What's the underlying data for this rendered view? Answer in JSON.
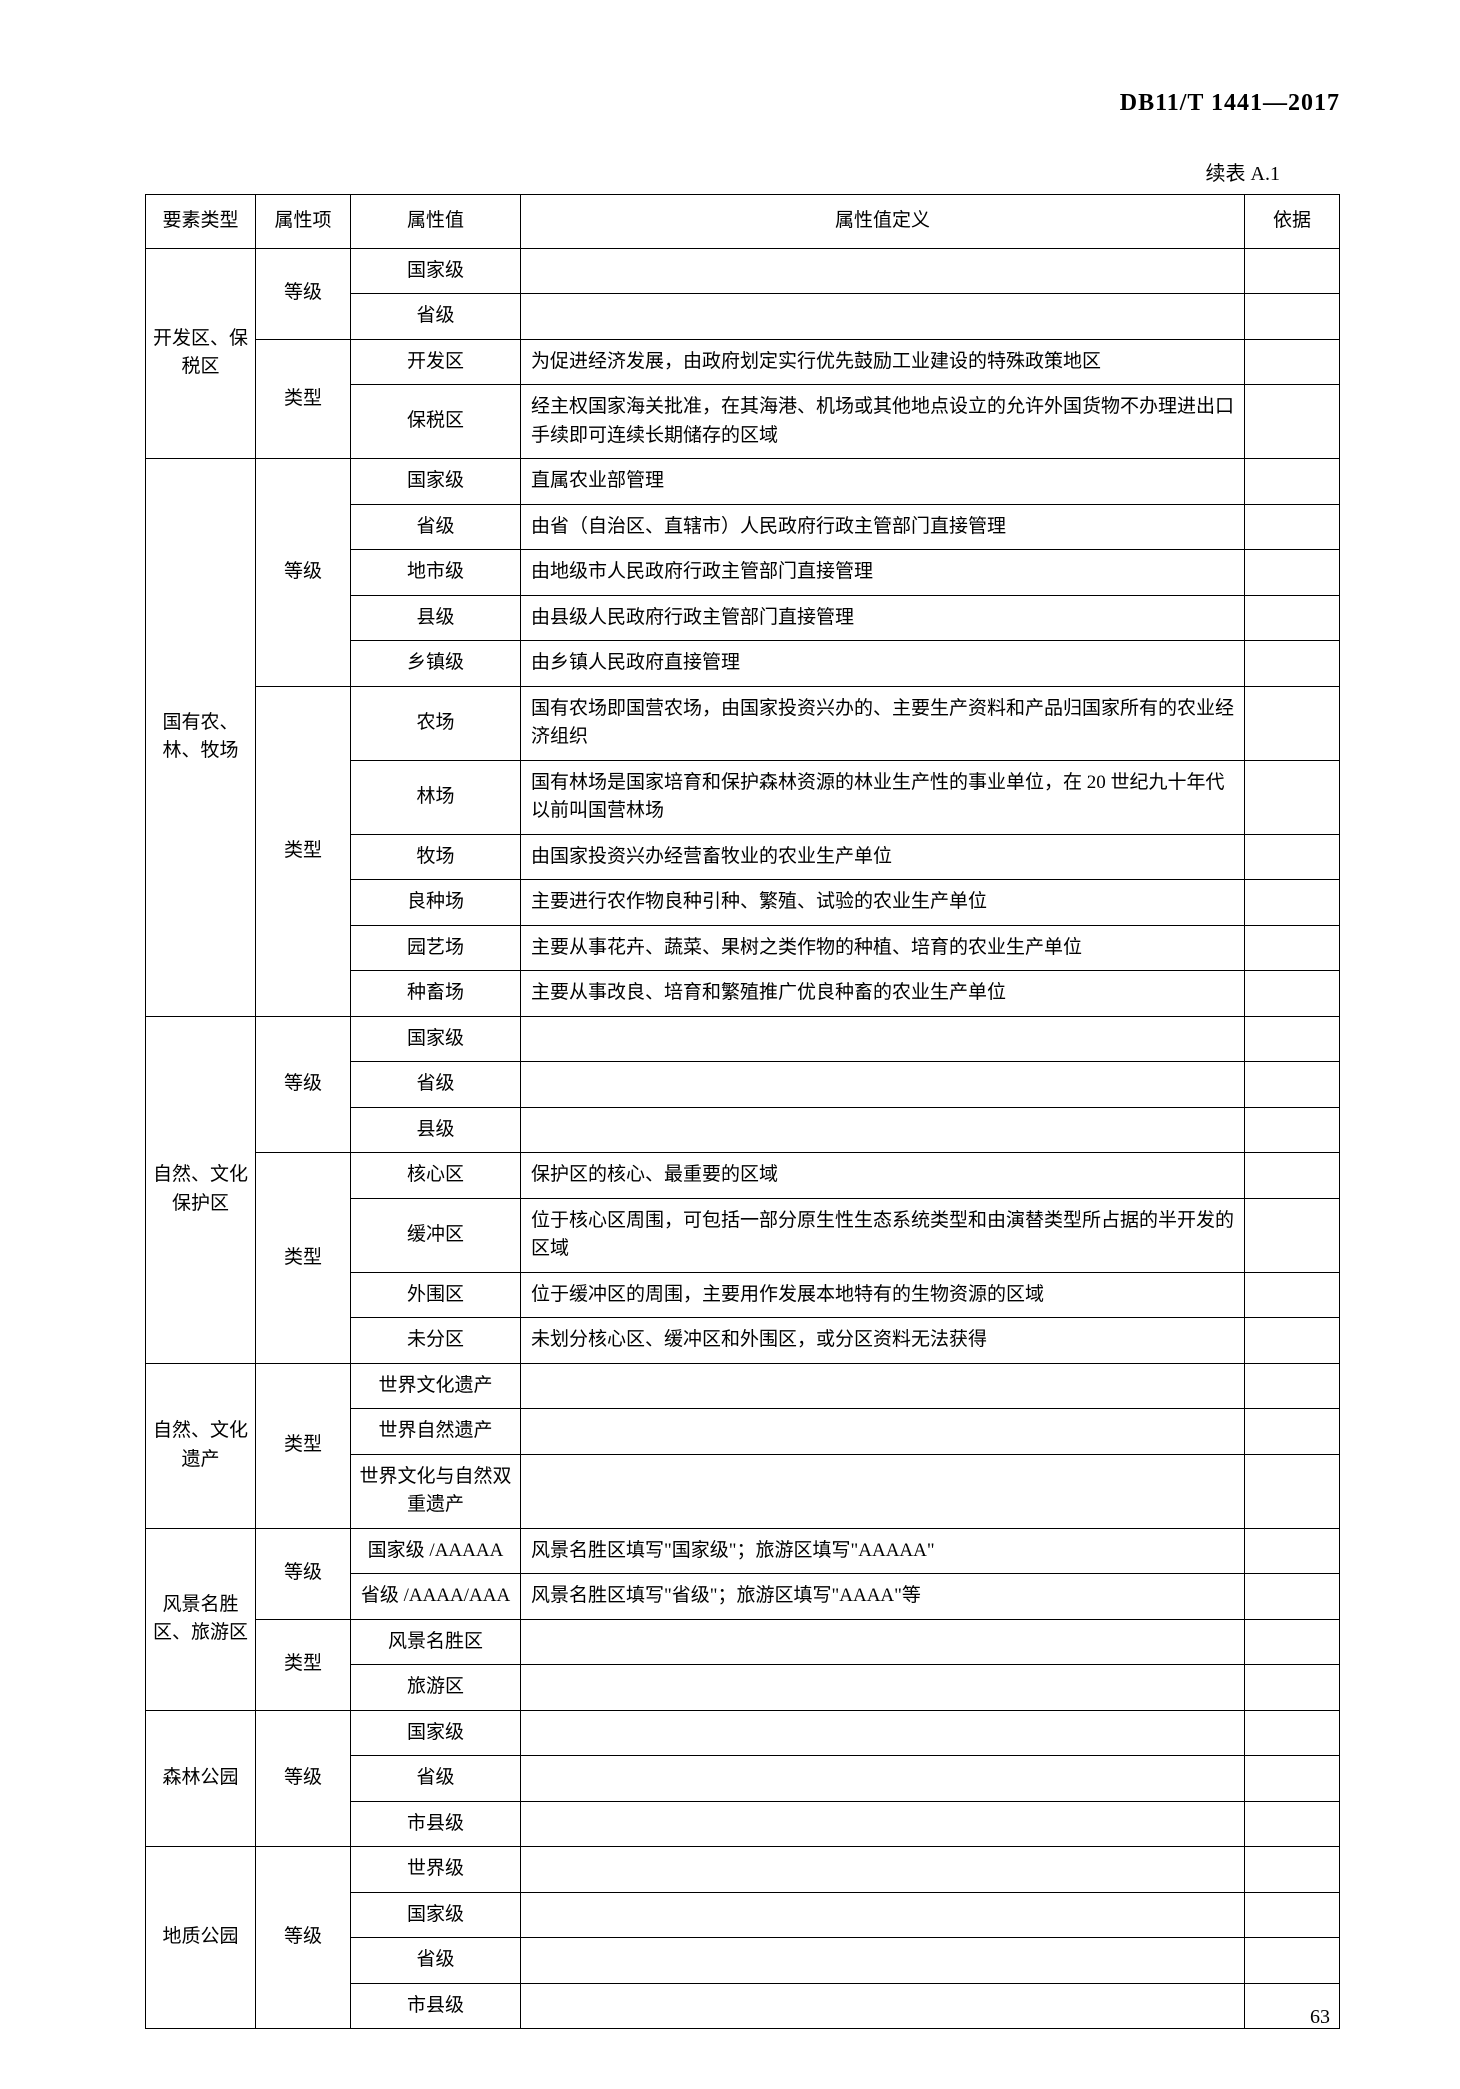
{
  "doc_id": "DB11/T 1441—2017",
  "table_caption": "续表 A.1",
  "page_number": "63",
  "headers": {
    "c1": "要素类型",
    "c2": "属性项",
    "c3": "属性值",
    "c4": "属性值定义",
    "c5": "依据"
  },
  "groups": [
    {
      "element_type": "开发区、保税区",
      "attrs": [
        {
          "attr": "等级",
          "values": [
            {
              "val": "国家级",
              "def": ""
            },
            {
              "val": "省级",
              "def": ""
            }
          ]
        },
        {
          "attr": "类型",
          "values": [
            {
              "val": "开发区",
              "def": "为促进经济发展，由政府划定实行优先鼓励工业建设的特殊政策地区"
            },
            {
              "val": "保税区",
              "def": "经主权国家海关批准，在其海港、机场或其他地点设立的允许外国货物不办理进出口手续即可连续长期储存的区域"
            }
          ]
        }
      ]
    },
    {
      "element_type": "国有农、林、牧场",
      "attrs": [
        {
          "attr": "等级",
          "values": [
            {
              "val": "国家级",
              "def": "直属农业部管理"
            },
            {
              "val": "省级",
              "def": "由省（自治区、直辖市）人民政府行政主管部门直接管理"
            },
            {
              "val": "地市级",
              "def": "由地级市人民政府行政主管部门直接管理"
            },
            {
              "val": "县级",
              "def": "由县级人民政府行政主管部门直接管理"
            },
            {
              "val": "乡镇级",
              "def": "由乡镇人民政府直接管理"
            }
          ]
        },
        {
          "attr": "类型",
          "values": [
            {
              "val": "农场",
              "def": "国有农场即国营农场，由国家投资兴办的、主要生产资料和产品归国家所有的农业经济组织"
            },
            {
              "val": "林场",
              "def": "国有林场是国家培育和保护森林资源的林业生产性的事业单位，在 20 世纪九十年代以前叫国营林场"
            },
            {
              "val": "牧场",
              "def": "由国家投资兴办经营畜牧业的农业生产单位"
            },
            {
              "val": "良种场",
              "def": "主要进行农作物良种引种、繁殖、试验的农业生产单位"
            },
            {
              "val": "园艺场",
              "def": "主要从事花卉、蔬菜、果树之类作物的种植、培育的农业生产单位"
            },
            {
              "val": "种畜场",
              "def": "主要从事改良、培育和繁殖推广优良种畜的农业生产单位"
            }
          ]
        }
      ]
    },
    {
      "element_type": "自然、文化保护区",
      "attrs": [
        {
          "attr": "等级",
          "values": [
            {
              "val": "国家级",
              "def": ""
            },
            {
              "val": "省级",
              "def": ""
            },
            {
              "val": "县级",
              "def": ""
            }
          ]
        },
        {
          "attr": "类型",
          "values": [
            {
              "val": "核心区",
              "def": "保护区的核心、最重要的区域"
            },
            {
              "val": "缓冲区",
              "def": "位于核心区周围，可包括一部分原生性生态系统类型和由演替类型所占据的半开发的区域"
            },
            {
              "val": "外围区",
              "def": "位于缓冲区的周围，主要用作发展本地特有的生物资源的区域"
            },
            {
              "val": "未分区",
              "def": "未划分核心区、缓冲区和外围区，或分区资料无法获得"
            }
          ]
        }
      ]
    },
    {
      "element_type": "自然、文化遗产",
      "attrs": [
        {
          "attr": "类型",
          "values": [
            {
              "val": "世界文化遗产",
              "def": ""
            },
            {
              "val": "世界自然遗产",
              "def": ""
            },
            {
              "val": "世界文化与自然双重遗产",
              "def": ""
            }
          ]
        }
      ]
    },
    {
      "element_type": "风景名胜区、旅游区",
      "attrs": [
        {
          "attr": "等级",
          "values": [
            {
              "val": "国家级 /AAAAA",
              "def": "风景名胜区填写\"国家级\"；旅游区填写\"AAAAA\""
            },
            {
              "val": "省级 /AAAA/AAA",
              "def": "风景名胜区填写\"省级\"；旅游区填写\"AAAA\"等"
            }
          ]
        },
        {
          "attr": "类型",
          "values": [
            {
              "val": "风景名胜区",
              "def": ""
            },
            {
              "val": "旅游区",
              "def": ""
            }
          ]
        }
      ]
    },
    {
      "element_type": "森林公园",
      "attrs": [
        {
          "attr": "等级",
          "values": [
            {
              "val": "国家级",
              "def": ""
            },
            {
              "val": "省级",
              "def": ""
            },
            {
              "val": "市县级",
              "def": ""
            }
          ]
        }
      ]
    },
    {
      "element_type": "地质公园",
      "attrs": [
        {
          "attr": "等级",
          "values": [
            {
              "val": "世界级",
              "def": ""
            },
            {
              "val": "国家级",
              "def": ""
            },
            {
              "val": "省级",
              "def": ""
            },
            {
              "val": "市县级",
              "def": ""
            }
          ]
        }
      ]
    }
  ]
}
